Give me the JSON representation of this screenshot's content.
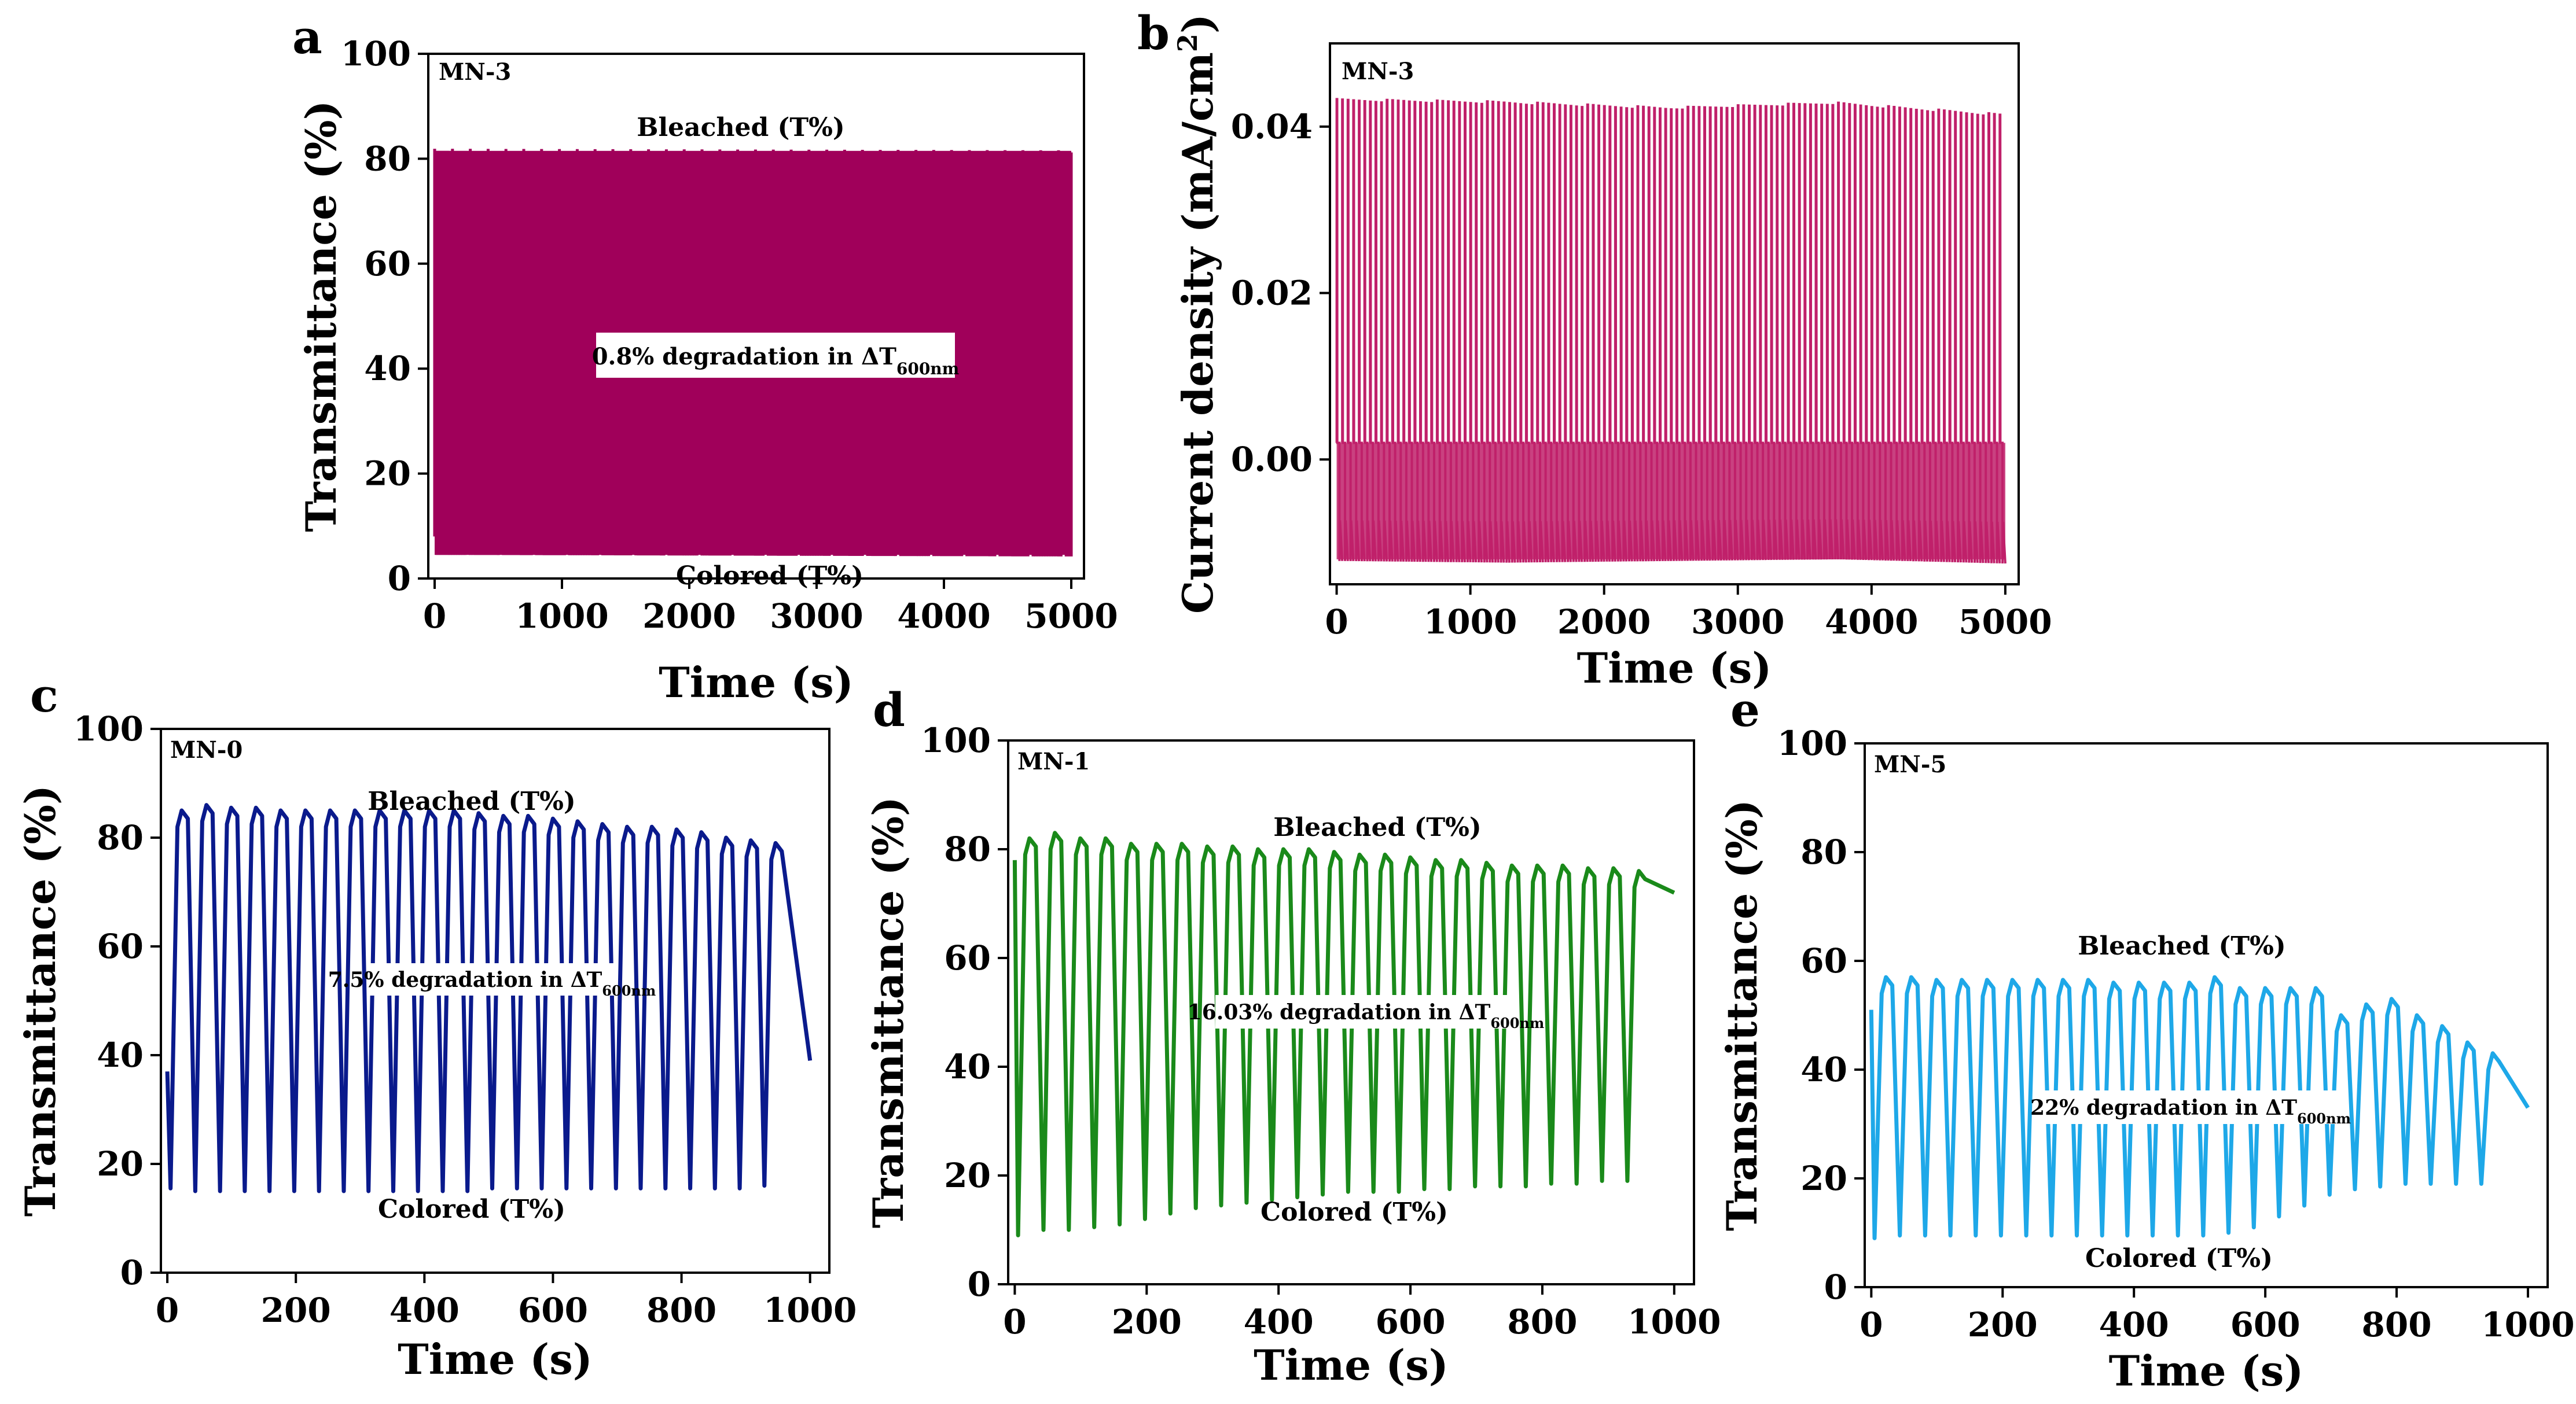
{
  "chart_data": [
    {
      "id": "a",
      "type": "line",
      "panel_label": "a",
      "sample": "MN-3",
      "xlabel": "Time (s)",
      "ylabel": "Transmittance (%)",
      "xlim": [
        -50,
        5100
      ],
      "ylim": [
        0,
        100
      ],
      "xticks": [
        0,
        1000,
        2000,
        3000,
        4000,
        5000
      ],
      "yticks": [
        0,
        20,
        40,
        60,
        80,
        100
      ],
      "color": "#a0005a",
      "series": [
        {
          "name": "MN-3",
          "cycles": 250,
          "period_s": 20,
          "x_start": 0,
          "x_end": 5000,
          "max_start": 81.5,
          "max_end": 81.2,
          "min_start": 4.5,
          "min_end": 4.2
        }
      ],
      "annotations": {
        "top": "Bleached (T%)",
        "bottom": "Colored (T%)"
      },
      "degradation": {
        "text": "0.8% degradation in ΔT",
        "subscript": "600nm"
      }
    },
    {
      "id": "b",
      "type": "line",
      "panel_label": "b",
      "sample": "MN-3",
      "xlabel": "Time (s)",
      "ylabel_main": "Current density (mA/cm",
      "ylabel_sup": "2",
      "ylabel_end": ")",
      "xlim": [
        -50,
        5100
      ],
      "ylim": [
        -0.015,
        0.05
      ],
      "xticks": [
        0,
        1000,
        2000,
        3000,
        4000,
        5000
      ],
      "yticks": [
        0.0,
        0.02,
        0.04
      ],
      "ytick_labels": [
        "0.00",
        "0.02",
        "0.04"
      ],
      "color": "#c0206a",
      "series": [
        {
          "name": "MN-3",
          "cycles": 120,
          "period_s": 41.6,
          "x_start": 0,
          "x_end": 5000,
          "max_values": [
            0.0433,
            0.043,
            0.0423,
            0.0429,
            0.0415
          ],
          "min_values": [
            -0.0122,
            -0.0124,
            -0.0122,
            -0.012,
            -0.0125
          ]
        }
      ]
    },
    {
      "id": "c",
      "type": "line",
      "panel_label": "c",
      "sample": "MN-0",
      "xlabel": "Time (s)",
      "ylabel": "Transmittance (%)",
      "xlim": [
        -10,
        1030
      ],
      "ylim": [
        0,
        100
      ],
      "xticks": [
        0,
        200,
        400,
        600,
        800,
        1000
      ],
      "yticks": [
        0,
        20,
        40,
        60,
        80,
        100
      ],
      "color": "#0a1a8c",
      "series": [
        {
          "name": "MN-0",
          "start_value": 37,
          "end_value": 39,
          "period_s": 38.5,
          "num_cycles": 25,
          "peaks": [
            85,
            86,
            85.5,
            85.5,
            85,
            85,
            85,
            85,
            85,
            85,
            85,
            85,
            84.5,
            84,
            84,
            83.5,
            83,
            82.5,
            82,
            82,
            81.5,
            81,
            80,
            79.5,
            79
          ],
          "troughs": [
            15.5,
            15,
            15,
            15,
            15,
            15,
            15,
            15,
            15,
            15,
            15,
            15,
            15,
            15.5,
            15.5,
            15.5,
            15.5,
            15.5,
            15.5,
            15.5,
            15.5,
            15.5,
            15.5,
            15.5,
            16
          ]
        }
      ],
      "annotations": {
        "top": "Bleached (T%)",
        "bottom": "Colored (T%)"
      },
      "degradation": {
        "text": "7.5% degradation in ΔT",
        "subscript": "600nm"
      }
    },
    {
      "id": "d",
      "type": "line",
      "panel_label": "d",
      "sample": "MN-1",
      "xlabel": "Time (s)",
      "ylabel": "Transmittance (%)",
      "xlim": [
        -10,
        1030
      ],
      "ylim": [
        0,
        100
      ],
      "xticks": [
        0,
        200,
        400,
        600,
        800,
        1000
      ],
      "yticks": [
        0,
        20,
        40,
        60,
        80,
        100
      ],
      "color": "#1a8a1a",
      "series": [
        {
          "name": "MN-1",
          "start_value": 78,
          "end_value": 72,
          "period_s": 38.5,
          "num_cycles": 25,
          "peaks": [
            82,
            83,
            82,
            82,
            81,
            81,
            81,
            80.5,
            80.5,
            80,
            80,
            80,
            79.5,
            79,
            79,
            78.5,
            78,
            78,
            77.5,
            77,
            77,
            77,
            76.5,
            76.5,
            76
          ],
          "troughs": [
            9,
            10,
            10,
            10.5,
            11,
            12,
            13,
            14,
            14.5,
            15,
            15.5,
            16,
            16.5,
            17,
            17,
            17,
            17.5,
            17.5,
            18,
            18,
            18,
            18.5,
            18.5,
            19,
            19
          ]
        }
      ],
      "annotations": {
        "top": "Bleached (T%)",
        "bottom": "Colored (T%)"
      },
      "degradation": {
        "text": "16.03% degradation in ΔT",
        "subscript": "600nm"
      }
    },
    {
      "id": "e",
      "type": "line",
      "panel_label": "e",
      "sample": "MN-5",
      "xlabel": "Time (s)",
      "ylabel": "Transmittance (%)",
      "xlim": [
        -10,
        1030
      ],
      "ylim": [
        0,
        100
      ],
      "xticks": [
        0,
        200,
        400,
        600,
        800,
        1000
      ],
      "yticks": [
        0,
        20,
        40,
        60,
        80,
        100
      ],
      "color": "#1ea8e8",
      "series": [
        {
          "name": "MN-5",
          "start_value": 51,
          "end_value": 33,
          "period_s": 38.5,
          "num_cycles": 25,
          "peaks": [
            57,
            57,
            56.5,
            56.5,
            56.5,
            56.5,
            56.5,
            56.5,
            56.5,
            56,
            56,
            56,
            56,
            57,
            55,
            55,
            55,
            55,
            50,
            52,
            53,
            50,
            48,
            45,
            43
          ],
          "troughs": [
            9,
            9.5,
            9.5,
            9.5,
            9.5,
            9.5,
            9.5,
            9.5,
            9.5,
            9.5,
            9.5,
            9.5,
            9.5,
            9.5,
            10,
            11,
            13,
            15,
            17,
            18,
            18.5,
            19,
            19,
            19,
            19
          ]
        }
      ],
      "annotations": {
        "top": "Bleached (T%)",
        "bottom": "Colored (T%)"
      },
      "degradation": {
        "text": "22% degradation in ΔT",
        "subscript": "600nm"
      }
    }
  ]
}
